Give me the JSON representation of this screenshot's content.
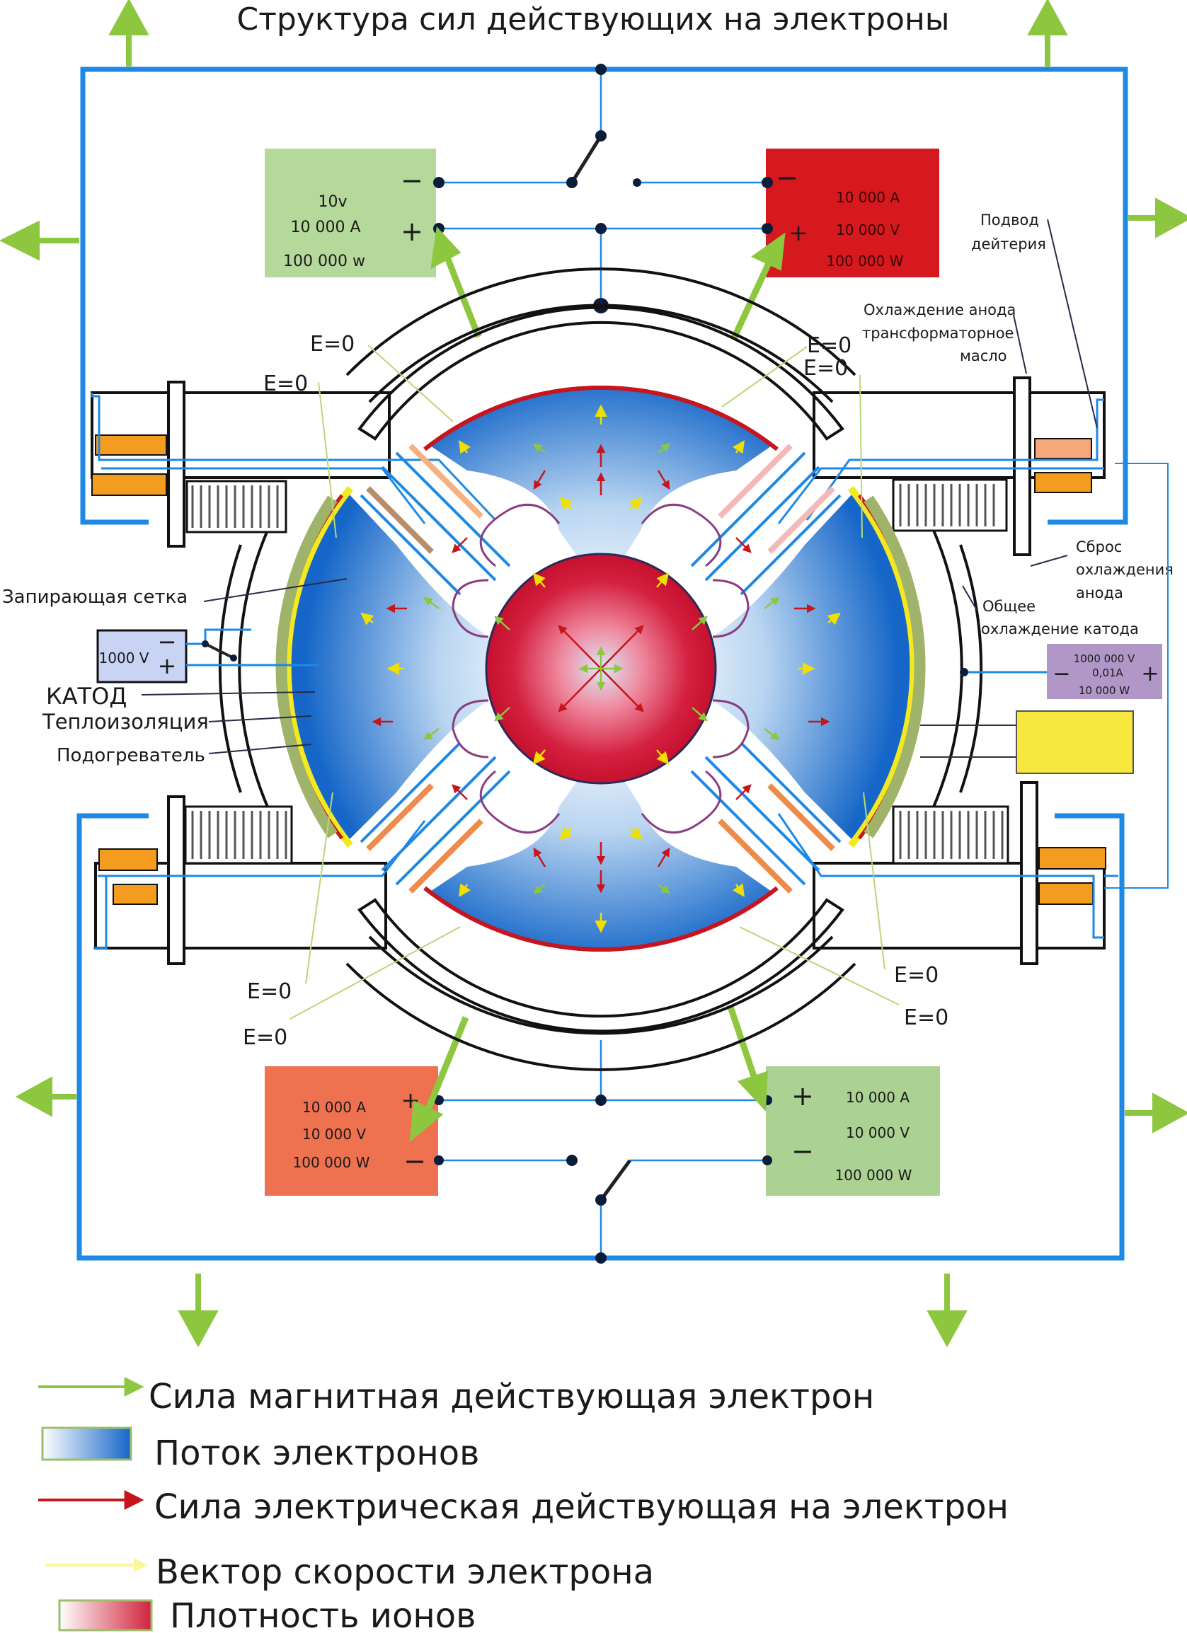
{
  "title": "Структура сил действующих на электроны",
  "labels": {
    "e_zero": "E=0",
    "locking_grid": "Запирающая сетка",
    "cathode": "КАТОД",
    "thermal_insulation": "Теплоизоляция",
    "heater": "Подогреватель",
    "deuterium_supply": [
      "Подвод",
      "дейтерия"
    ],
    "anode_cooling": [
      "Охлаждение анода",
      "трансформаторное",
      "масло"
    ],
    "anode_cooling_reset": [
      "Сброс",
      "охлаждения",
      "анода"
    ],
    "cathode_cooling": [
      "Общее",
      "охлаждение катода"
    ]
  },
  "power_supplies": {
    "top_left": {
      "lines": [
        "10v",
        "10 000 A",
        "100 000 w"
      ],
      "minus": "−",
      "plus": "+",
      "color": "#b5d89b"
    },
    "top_right": {
      "lines": [
        "10 000 A",
        "10 000 V",
        "100 000 W"
      ],
      "minus": "−",
      "plus": "+",
      "color": "#d6191e"
    },
    "bottom_left": {
      "lines": [
        "10 000 A",
        "10 000 V",
        "100 000 W"
      ],
      "minus": "−",
      "plus": "+",
      "color": "#ee7150"
    },
    "bottom_right": {
      "lines": [
        "10 000 A",
        "10 000 V",
        "100 000 W"
      ],
      "minus": "−",
      "plus": "+",
      "color": "#acd293"
    },
    "grid": {
      "lines": [
        "1000 V"
      ],
      "minus": "−",
      "plus": "+",
      "color": "#c9d3f4"
    },
    "cathode_psu": {
      "lines": [
        "1000 000 V",
        "0,01A",
        "10 000 W"
      ],
      "minus": "−",
      "plus": "+",
      "color": "#b197c8"
    },
    "yellow_box": {
      "color": "#f6e83c"
    }
  },
  "legend": [
    {
      "label": "Сила магнитная действующая электрон",
      "swatch": "green-arrow",
      "color": "#8dc63f"
    },
    {
      "label": "Поток электронов",
      "swatch": "blue-gradient",
      "color": "#1f6fd1"
    },
    {
      "label": "Сила электрическая действующая на электрон",
      "swatch": "red-arrow",
      "color": "#c8141c"
    },
    {
      "label": "Вектор скорости электрона",
      "swatch": "yellow-arrow",
      "color": "#fbf59b"
    },
    {
      "label": "Плотность ионов",
      "swatch": "red-gradient",
      "color": "#d0233c"
    }
  ],
  "colors": {
    "frame": "#1e88e5",
    "magnetic": "#8dc63f",
    "electric": "#c8141c",
    "velocity": "#f2e700",
    "ion": "#c8102e",
    "flow": "#1f6fd1"
  }
}
